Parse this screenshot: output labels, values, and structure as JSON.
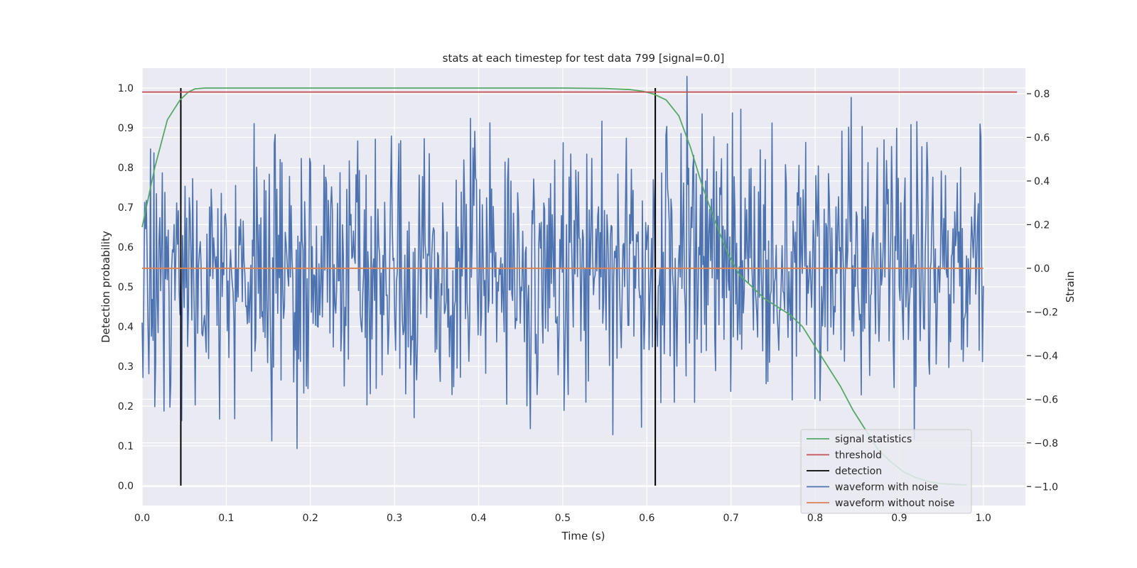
{
  "chart_data": {
    "type": "line",
    "title": "stats at each timestep for test data 799 [signal=0.0]",
    "xlabel": "Time (s)",
    "ylabel": "Detection probability",
    "y2label": "Strain",
    "xlim": [
      0.0,
      1.05
    ],
    "ylim": [
      -0.05,
      1.05
    ],
    "y2lim": [
      -1.087,
      0.917
    ],
    "xticks": [
      "0.0",
      "0.1",
      "0.2",
      "0.3",
      "0.4",
      "0.5",
      "0.6",
      "0.7",
      "0.8",
      "0.9",
      "1.0"
    ],
    "yticks": [
      "0.0",
      "0.1",
      "0.2",
      "0.3",
      "0.4",
      "0.5",
      "0.6",
      "0.7",
      "0.8",
      "0.9",
      "1.0"
    ],
    "y2ticks": [
      "−1.0",
      "−0.8",
      "−0.6",
      "−0.4",
      "−0.2",
      "0.0",
      "0.2",
      "0.4",
      "0.6",
      "0.8"
    ],
    "grid": true,
    "legend_position": "bottom-right",
    "colors": {
      "signal_statistics": "#55a868",
      "threshold": "#c44e52",
      "detection": "#000000",
      "waveform_with_noise": "#4c72b0",
      "waveform_without_noise": "#dd8452"
    },
    "legend": [
      "signal statistics",
      "threshold",
      "detection",
      "waveform with noise",
      "waveform without noise"
    ],
    "series": [
      {
        "name": "signal statistics",
        "axis": "left",
        "x": [
          0.0,
          0.015,
          0.03,
          0.045,
          0.055,
          0.063,
          0.075,
          0.1,
          0.2,
          0.3,
          0.4,
          0.5,
          0.55,
          0.58,
          0.595,
          0.608,
          0.623,
          0.638,
          0.652,
          0.665,
          0.68,
          0.695,
          0.71,
          0.725,
          0.74,
          0.755,
          0.77,
          0.785,
          0.8,
          0.815,
          0.83,
          0.845,
          0.86,
          0.875,
          0.89,
          0.905,
          0.92,
          0.935,
          0.95,
          0.965,
          0.98
        ],
        "values": [
          0.65,
          0.8,
          0.92,
          0.97,
          0.99,
          0.998,
          1.0,
          1.0,
          1.0,
          1.0,
          1.0,
          1.0,
          0.999,
          0.996,
          0.992,
          0.985,
          0.97,
          0.93,
          0.85,
          0.76,
          0.67,
          0.59,
          0.53,
          0.5,
          0.47,
          0.45,
          0.43,
          0.4,
          0.35,
          0.3,
          0.25,
          0.19,
          0.14,
          0.09,
          0.06,
          0.035,
          0.02,
          0.01,
          0.005,
          0.003,
          0.002
        ]
      },
      {
        "name": "threshold",
        "axis": "left",
        "x": [
          0.0,
          1.04
        ],
        "values": [
          0.99,
          0.99
        ]
      },
      {
        "name": "detection",
        "axis": "left",
        "segments": [
          {
            "x": 0.046,
            "from": 0.0,
            "to": 1.0
          },
          {
            "x": 0.61,
            "from": 0.0,
            "to": 1.0
          }
        ]
      },
      {
        "name": "waveform with noise",
        "axis": "right",
        "x_start": 0.0,
        "x_end": 1.0,
        "amplitude": 0.3,
        "seed": 799,
        "n_points": 1000
      },
      {
        "name": "waveform without noise",
        "axis": "right",
        "x": [
          0.0,
          1.0
        ],
        "values": [
          0.0,
          0.0
        ]
      }
    ]
  }
}
